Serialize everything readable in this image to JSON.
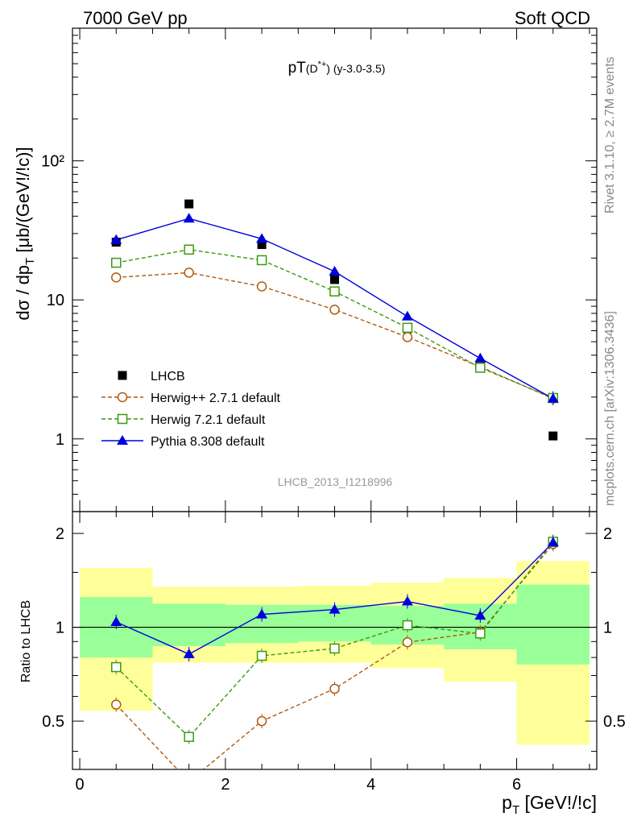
{
  "header": {
    "left": "7000 GeV pp",
    "right": "Soft QCD"
  },
  "side_labels": {
    "rivet": "Rivet 3.1.10, ≥ 2.7M events",
    "mcplots": "mcplots.cern.ch [arXiv:1306.3436]"
  },
  "chart_data": [
    {
      "type": "scatter",
      "title": "pT(D*+) (y-3.0-3.5)",
      "xlabel": "pT [GeV!/!c]",
      "ylabel": "dσ / dpT [μb/(GeV!/!c)]",
      "y_scale": "log",
      "xlim": [
        -0.1,
        7.1
      ],
      "ylim": [
        0.3,
        900
      ],
      "yticks": [
        {
          "value": 1,
          "label": "1"
        },
        {
          "value": 10,
          "label": "10"
        },
        {
          "value": 100,
          "label": "10²"
        }
      ],
      "x": [
        0.5,
        1.5,
        2.5,
        3.5,
        4.5,
        5.5,
        6.5
      ],
      "series": [
        {
          "name": "LHCB",
          "marker": "filled-square",
          "color": "#000000",
          "values": [
            26.0,
            49.0,
            25.0,
            14.0,
            6.2,
            3.4,
            1.05
          ]
        },
        {
          "name": "Herwig++ 2.7.1 default",
          "marker": "open-circle",
          "line": "dashed",
          "color": "#b05a10",
          "values": [
            14.5,
            15.7,
            12.5,
            8.5,
            5.4,
            3.3,
            1.95
          ]
        },
        {
          "name": "Herwig 7.2.1 default",
          "marker": "open-square",
          "line": "dashed",
          "color": "#3a9a10",
          "values": [
            18.5,
            23.0,
            19.3,
            11.5,
            6.3,
            3.25,
            1.97
          ]
        },
        {
          "name": "Pythia 8.308 default",
          "marker": "filled-triangle",
          "line": "solid",
          "color": "#0000dd",
          "values": [
            27.0,
            38.5,
            27.5,
            16.0,
            7.6,
            3.8,
            1.95
          ]
        }
      ],
      "legend_position": "lower-left",
      "watermark": "LHCB_2013_I1218996"
    },
    {
      "type": "line",
      "ylabel": "Ratio to LHCB",
      "xlabel": "pT [GeV!/!c]",
      "y_scale": "log",
      "xlim": [
        -0.1,
        7.1
      ],
      "ylim": [
        0.35,
        2.35
      ],
      "xticks": [
        0,
        2,
        4,
        6
      ],
      "yticks": [
        {
          "value": 0.5,
          "label": "0.5"
        },
        {
          "value": 1,
          "label": "1"
        },
        {
          "value": 2,
          "label": "2"
        }
      ],
      "x": [
        0.5,
        1.5,
        2.5,
        3.5,
        4.5,
        5.5,
        6.5
      ],
      "bands": {
        "bins": [
          [
            0,
            1
          ],
          [
            1,
            2
          ],
          [
            2,
            3
          ],
          [
            3,
            4
          ],
          [
            4,
            5
          ],
          [
            5,
            6
          ],
          [
            6,
            7
          ]
        ],
        "inner_low": [
          0.8,
          0.87,
          0.89,
          0.9,
          0.88,
          0.85,
          0.76
        ],
        "inner_high": [
          1.25,
          1.19,
          1.18,
          1.18,
          1.17,
          1.19,
          1.37
        ],
        "outer_low": [
          0.54,
          0.77,
          0.77,
          0.77,
          0.74,
          0.67,
          0.42
        ],
        "outer_high": [
          1.55,
          1.35,
          1.35,
          1.36,
          1.39,
          1.44,
          1.63
        ],
        "inner_color": "#99ff99",
        "outer_color": "#ffff99"
      },
      "series": [
        {
          "name": "Herwig++ 2.7.1 default",
          "color": "#b05a10",
          "values": [
            0.565,
            0.32,
            0.5,
            0.635,
            0.895,
            0.965,
            1.85
          ]
        },
        {
          "name": "Herwig 7.2.1 default",
          "color": "#3a9a10",
          "values": [
            0.745,
            0.445,
            0.81,
            0.855,
            1.015,
            0.955,
            1.88
          ]
        },
        {
          "name": "Pythia 8.308 default",
          "color": "#0000dd",
          "values": [
            1.04,
            0.82,
            1.1,
            1.14,
            1.21,
            1.09,
            1.87
          ]
        }
      ]
    }
  ]
}
